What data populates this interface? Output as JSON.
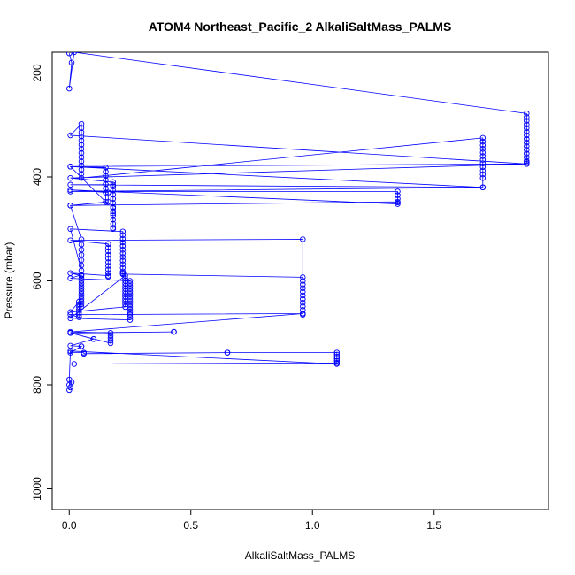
{
  "chart_data": {
    "type": "line",
    "title": "ATOM4 Northeast_Pacific_2 AlkaliSaltMass_PALMS",
    "xlabel": "AlkaliSaltMass_PALMS",
    "ylabel": "Pressure (mbar)",
    "xlim": [
      -0.07,
      1.97
    ],
    "ylim": [
      1040,
      160
    ],
    "y_reversed": true,
    "x_ticks": [
      "0.0",
      "0.5",
      "1.0",
      "1.5"
    ],
    "x_tick_values": [
      0,
      0.5,
      1.0,
      1.5
    ],
    "y_ticks": [
      "200",
      "400",
      "600",
      "800",
      "1000"
    ],
    "y_tick_values": [
      200,
      400,
      600,
      800,
      1000
    ],
    "grid": false,
    "legend": "none",
    "marker": "open-circle",
    "series_color": "#0000ff",
    "series": [
      {
        "x": [
          0,
          0.01,
          0,
          0.02,
          1.88,
          1.88,
          1.88,
          1.88,
          1.88,
          1.88,
          1.88,
          1.88,
          1.88,
          1.88,
          1.88,
          1.88,
          1.88,
          1.88,
          1.88,
          1.88,
          0.005,
          0.05,
          0.05,
          0.05,
          0.05,
          0.05,
          0.05,
          0.05,
          0.05,
          0.05,
          0.05,
          0.05,
          0.05,
          0.05,
          0.05,
          1.7,
          1.7,
          1.7,
          1.7,
          1.7,
          1.7,
          1.7,
          1.7,
          1.7,
          1.7,
          1.7,
          1.7,
          1.7,
          0.005,
          0.15,
          0.15,
          0.15,
          0.15,
          0.15,
          0.15,
          0.15,
          0.15,
          0.005,
          1.88,
          0.005,
          0.18,
          0.18,
          0.18,
          0.18,
          0.18,
          0.18,
          0.18,
          0.18,
          0.18,
          0.18,
          0.18,
          0.18,
          0.18,
          0.18,
          0.18,
          0.18,
          0.005,
          1.7,
          0.005,
          1.35,
          1.35,
          1.35,
          1.35,
          1.35,
          0.005,
          0.16,
          0.16,
          0.005,
          1.35,
          0.005,
          0.05,
          0.05,
          0.05,
          0.05,
          0.05,
          0.05,
          0.05,
          0.005,
          0.22,
          0.22,
          0.22,
          0.22,
          0.22,
          0.22,
          0.22,
          0.22,
          0.22,
          0.22,
          0.22,
          0.22,
          0.22,
          0.22,
          0.96,
          0.96,
          0.96,
          0.96,
          0.96,
          0.96,
          0.96,
          0.96,
          0.96,
          0.96,
          0.96,
          0.96,
          0.96,
          0.005,
          0.16,
          0.16,
          0.16,
          0.16,
          0.16,
          0.16,
          0.16,
          0.16,
          0.16,
          0.16,
          0.16,
          0.005,
          0.05,
          0.05,
          0.05,
          0.05,
          0.05,
          0.05,
          0.05,
          0.05,
          0.05,
          0.05,
          0.05,
          0.05,
          0.05,
          0.05,
          0.005,
          0.25,
          0.25,
          0.25,
          0.25,
          0.25,
          0.25,
          0.25,
          0.25,
          0.25,
          0.25,
          0.25,
          0.25,
          0.25,
          0.25,
          0.25,
          0.25,
          0.005,
          0.23,
          0.23,
          0.23,
          0.23,
          0.23,
          0.23,
          0.23,
          0.23,
          0.23,
          0.23,
          0.23,
          0.23,
          0.23,
          0.005,
          0.04,
          0.04,
          0.04,
          0.04,
          0.04,
          0.04,
          0.04,
          0.005,
          0.96,
          0.005,
          0.17,
          0.17,
          0.17,
          0.17,
          0.17,
          0.005,
          0.43,
          0.43,
          0.005,
          0.1,
          0.1,
          0.005,
          0.05,
          0.05,
          0.005,
          0.06,
          0.06,
          0.65,
          0.65,
          1.1,
          1.1,
          1.1,
          1.1,
          1.1,
          1.1,
          0.02,
          1.1,
          0.005,
          0,
          0.01,
          0,
          0.005,
          0
        ],
        "y": [
          162,
          180,
          230,
          160,
          278,
          285,
          292,
          299,
          306,
          313,
          320,
          327,
          334,
          341,
          348,
          355,
          362,
          369,
          372,
          375,
          320,
          298,
          306,
          314,
          322,
          330,
          338,
          346,
          354,
          362,
          370,
          378,
          386,
          394,
          402,
          325,
          332,
          339,
          346,
          353,
          360,
          367,
          374,
          381,
          388,
          395,
          402,
          420,
          380,
          382,
          390,
          398,
          406,
          414,
          422,
          430,
          448,
          380,
          375,
          402,
          410,
          418,
          426,
          434,
          442,
          450,
          458,
          466,
          474,
          482,
          490,
          498,
          500,
          470,
          460,
          415,
          415,
          420,
          428,
          428,
          435,
          442,
          449,
          452,
          425,
          430,
          448,
          455,
          448,
          455,
          520,
          530,
          540,
          550,
          560,
          570,
          580,
          500,
          505,
          512,
          519,
          526,
          533,
          540,
          547,
          554,
          561,
          568,
          575,
          582,
          585,
          587,
          593,
          600,
          607,
          614,
          621,
          628,
          635,
          642,
          649,
          656,
          663,
          665,
          520,
          522,
          529,
          536,
          543,
          550,
          557,
          564,
          571,
          578,
          585,
          592,
          590,
          585,
          590,
          595,
          600,
          605,
          610,
          615,
          620,
          625,
          630,
          635,
          640,
          645,
          650,
          588,
          595,
          600,
          605,
          610,
          615,
          620,
          625,
          630,
          635,
          640,
          645,
          650,
          655,
          660,
          665,
          670,
          675,
          672,
          590,
          595,
          600,
          605,
          610,
          615,
          620,
          625,
          630,
          635,
          640,
          645,
          650,
          660,
          640,
          645,
          650,
          655,
          660,
          665,
          670,
          665,
          663,
          698,
          700,
          705,
          710,
          715,
          720,
          700,
          698,
          698,
          700,
          712,
          712,
          725,
          726,
          726,
          738,
          738,
          740,
          738,
          738,
          738,
          742,
          746,
          750,
          754,
          758,
          760,
          760,
          735,
          790,
          795,
          800,
          805,
          810
        ]
      }
    ]
  }
}
